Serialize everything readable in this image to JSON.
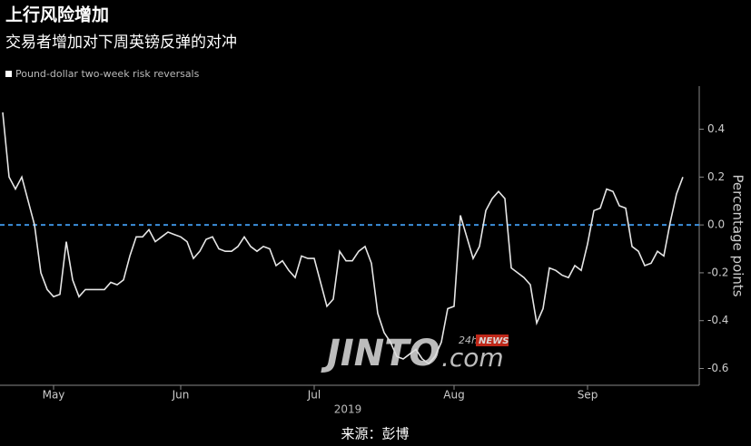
{
  "chart_data": {
    "type": "line",
    "title": "上行风险增加",
    "subtitle": "交易者增加对下周英镑反弹的对冲",
    "series_name": "Pound-dollar two-week risk reversals",
    "y_label": "Percentage points",
    "x_label": "2019",
    "source": "来源：彭博",
    "watermark": [
      "JINTO",
      "24h",
      "NEWS",
      ".com"
    ],
    "color": "#e6e6e6",
    "reference_line": 0,
    "reference_color": "#3b8fdc",
    "categories": [
      null,
      null,
      null,
      null,
      null,
      null,
      null,
      null,
      "May",
      null,
      null,
      null,
      null,
      null,
      null,
      null,
      null,
      null,
      null,
      null,
      null,
      null,
      null,
      null,
      null,
      null,
      null,
      null,
      "Jun",
      null,
      null,
      null,
      null,
      null,
      null,
      null,
      null,
      null,
      null,
      null,
      null,
      null,
      null,
      null,
      null,
      null,
      null,
      null,
      null,
      "Jul",
      null,
      null,
      null,
      null,
      null,
      null,
      null,
      null,
      null,
      null,
      null,
      null,
      null,
      null,
      null,
      null,
      null,
      null,
      null,
      null,
      null,
      "Aug",
      null,
      null,
      null,
      null,
      null,
      null,
      null,
      null,
      null,
      null,
      null,
      null,
      null,
      null,
      null,
      null,
      null,
      null,
      null,
      null,
      "Sep",
      null,
      null,
      null,
      null,
      null,
      null,
      null,
      null,
      null,
      null,
      null,
      null,
      null,
      null,
      null
    ],
    "values": [
      0.47,
      0.2,
      0.15,
      0.2,
      0.1,
      0.0,
      -0.2,
      -0.27,
      -0.3,
      -0.29,
      -0.07,
      -0.23,
      -0.3,
      -0.27,
      -0.27,
      -0.27,
      -0.27,
      -0.24,
      -0.25,
      -0.23,
      -0.13,
      -0.05,
      -0.05,
      -0.02,
      -0.07,
      -0.05,
      -0.03,
      -0.04,
      -0.05,
      -0.07,
      -0.14,
      -0.11,
      -0.06,
      -0.05,
      -0.1,
      -0.11,
      -0.11,
      -0.09,
      -0.05,
      -0.09,
      -0.11,
      -0.09,
      -0.1,
      -0.17,
      -0.15,
      -0.19,
      -0.22,
      -0.13,
      -0.14,
      -0.14,
      -0.24,
      -0.34,
      -0.31,
      -0.11,
      -0.15,
      -0.15,
      -0.11,
      -0.09,
      -0.16,
      -0.37,
      -0.45,
      -0.49,
      -0.55,
      -0.56,
      -0.54,
      -0.52,
      -0.56,
      -0.58,
      -0.55,
      -0.49,
      -0.35,
      -0.34,
      0.04,
      -0.05,
      -0.14,
      -0.09,
      0.06,
      0.11,
      0.14,
      0.11,
      -0.18,
      -0.2,
      -0.22,
      -0.25,
      -0.41,
      -0.35,
      -0.18,
      -0.19,
      -0.21,
      -0.22,
      -0.17,
      -0.19,
      -0.08,
      0.06,
      0.07,
      0.15,
      0.14,
      0.08,
      0.07,
      -0.09,
      -0.11,
      -0.17,
      -0.16,
      -0.11,
      -0.13,
      0.01,
      0.13,
      0.2
    ],
    "ylim": [
      -0.67,
      0.58
    ],
    "yticks": [
      -0.6,
      -0.4,
      -0.2,
      {
        "value": 0,
        "label": "0.0"
      },
      0.2,
      0.4
    ]
  }
}
